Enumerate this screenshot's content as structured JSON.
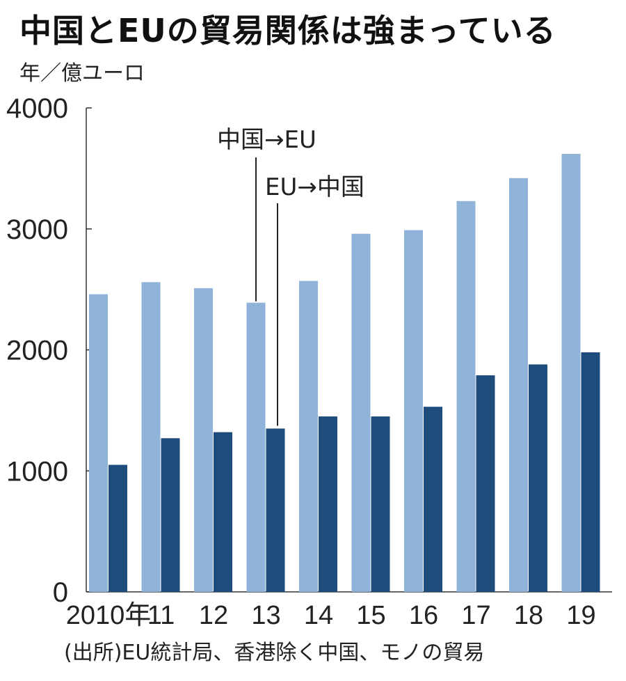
{
  "colors": {
    "china_to_eu": "#8fb3d9",
    "eu_to_china": "#1e4d7d",
    "axis": "#333333"
  },
  "chart_data": {
    "type": "bar",
    "title": "中国とEUの貿易関係は強まっている",
    "unit_label": "年／億ユーロ",
    "source": "(出所)EU統計局、香港除く中国、モノの貿易",
    "categories": [
      "2010年",
      "11",
      "12",
      "13",
      "14",
      "15",
      "16",
      "17",
      "18",
      "19"
    ],
    "series": [
      {
        "name": "中国→EU",
        "values": [
          2460,
          2560,
          2510,
          2390,
          2570,
          2960,
          2990,
          3230,
          3420,
          3620
        ]
      },
      {
        "name": "EU→中国",
        "values": [
          1050,
          1270,
          1320,
          1350,
          1450,
          1450,
          1530,
          1790,
          1880,
          1980
        ]
      }
    ],
    "yticks": [
      "0",
      "1000",
      "2000",
      "3000",
      "4000"
    ],
    "ylim": [
      0,
      4000
    ],
    "grid": false,
    "legend": "callout-lines"
  }
}
